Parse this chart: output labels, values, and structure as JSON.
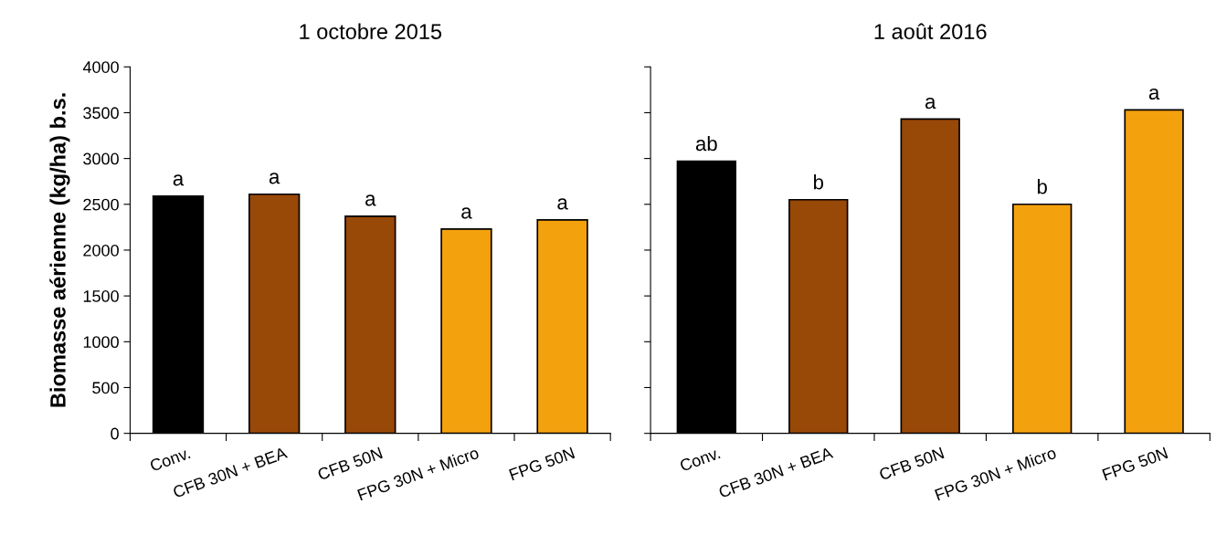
{
  "chart_data": [
    {
      "type": "bar",
      "title": "1 octobre 2015",
      "ylabel": "Biomasse aérienne (kg/ha) b.s.",
      "categories": [
        "Conv.",
        "CFB 30N + BEA",
        "CFB 50N",
        "FPG 30N + Micro",
        "FPG 50N"
      ],
      "values": [
        2590,
        2610,
        2370,
        2230,
        2330
      ],
      "colors": [
        "#000000",
        "#984807",
        "#984807",
        "#f4a10e",
        "#f4a10e"
      ],
      "ylim": [
        0,
        4000
      ],
      "yticks": [
        0,
        500,
        1000,
        1500,
        2000,
        2500,
        3000,
        3500,
        4000
      ],
      "annotations": [
        {
          "text": "a",
          "x": "Conv.",
          "y": 2590
        },
        {
          "text": "a",
          "x": "CFB 30N + BEA",
          "y": 2610
        },
        {
          "text": "a",
          "x": "CFB 50N",
          "y": 2370
        },
        {
          "text": "a",
          "x": "FPG 30N + Micro",
          "y": 2230
        },
        {
          "text": "a",
          "x": "FPG 50N",
          "y": 2330
        }
      ]
    },
    {
      "type": "bar",
      "title": "1 août 2016",
      "categories": [
        "Conv.",
        "CFB 30N + BEA",
        "CFB 50N",
        "FPG 30N + Micro",
        "FPG 50N"
      ],
      "values": [
        2970,
        2550,
        3430,
        2500,
        3530
      ],
      "colors": [
        "#000000",
        "#984807",
        "#984807",
        "#f4a10e",
        "#f4a10e"
      ],
      "ylim": [
        0,
        4000
      ],
      "yticks": [
        0,
        500,
        1000,
        1500,
        2000,
        2500,
        3000,
        3500,
        4000
      ],
      "tick_labels": "x",
      "annotations": [
        {
          "text": "ab",
          "x": "Conv.",
          "y": 2970
        },
        {
          "text": "b",
          "x": "CFB 30N + BEA",
          "y": 2550
        },
        {
          "text": "a",
          "x": "CFB 50N",
          "y": 3430
        },
        {
          "text": "b",
          "x": "FPG 30N + Micro",
          "y": 2500
        },
        {
          "text": "a",
          "x": "FPG 50N",
          "y": 3530
        }
      ]
    }
  ]
}
